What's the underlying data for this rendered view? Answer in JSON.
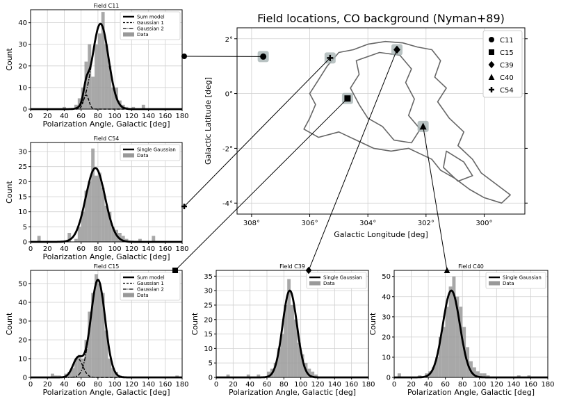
{
  "colors": {
    "bar": "#999999",
    "curve": "#000000",
    "contour": "#666666",
    "grid": "#d0d0d0"
  },
  "chart_data": [
    {
      "id": "map",
      "type": "scatter",
      "title": "Field locations, CO background (Nyman+89)",
      "xlabel": "Galactic Longitude [deg]",
      "ylabel": "Galactic Latitude [deg]",
      "xlim": [
        308.5,
        298.6
      ],
      "ylim": [
        -4.4,
        2.4
      ],
      "xticks": [
        "308°",
        "306°",
        "304°",
        "302°",
        "300°"
      ],
      "yticks": [
        "2°",
        "0°",
        "-2°",
        "-4°"
      ],
      "grid": true,
      "legend": "top-right",
      "fields": [
        {
          "name": "C11",
          "marker": "circle",
          "l": 307.6,
          "b": 1.35
        },
        {
          "name": "C15",
          "marker": "square",
          "l": 304.7,
          "b": -0.18
        },
        {
          "name": "C39",
          "marker": "diamond",
          "l": 303.0,
          "b": 1.6
        },
        {
          "name": "C40",
          "marker": "triangle",
          "l": 302.1,
          "b": -1.2
        },
        {
          "name": "C54",
          "marker": "plus",
          "l": 305.3,
          "b": 1.3
        }
      ]
    },
    {
      "id": "C11",
      "type": "bar",
      "title": "Field C11",
      "xlabel": "Polarization Angle, Galactic [deg]",
      "ylabel": "Count",
      "xlim": [
        0,
        180
      ],
      "ylim": [
        0,
        46
      ],
      "xticks": [
        0,
        20,
        40,
        60,
        80,
        100,
        120,
        140,
        160,
        180
      ],
      "yticks": [
        0,
        10,
        20,
        30,
        40
      ],
      "bin_width": 4,
      "bins": [
        [
          38,
          1
        ],
        [
          52,
          2
        ],
        [
          56,
          5
        ],
        [
          60,
          10
        ],
        [
          64,
          22
        ],
        [
          68,
          30
        ],
        [
          72,
          15
        ],
        [
          76,
          30
        ],
        [
          80,
          35
        ],
        [
          84,
          45
        ],
        [
          88,
          30
        ],
        [
          92,
          20
        ],
        [
          96,
          10
        ],
        [
          100,
          10
        ],
        [
          104,
          4
        ],
        [
          108,
          2
        ],
        [
          112,
          1
        ],
        [
          120,
          1
        ],
        [
          132,
          2
        ]
      ],
      "series": [
        {
          "name": "Sum model",
          "style": "solid",
          "components": [
            [
              6.5,
              66,
              3.2
            ],
            [
              39.5,
              83,
              9.5
            ]
          ]
        },
        {
          "name": "Gaussian 1",
          "style": "dashed",
          "components": [
            [
              6.5,
              66,
              3.2
            ]
          ]
        },
        {
          "name": "Gaussian 2",
          "style": "dashdot",
          "components": [
            [
              39.5,
              83,
              9.5
            ]
          ]
        },
        {
          "name": "Data",
          "style": "bar"
        }
      ]
    },
    {
      "id": "C54",
      "type": "bar",
      "title": "Field C54",
      "xlabel": "Polarization Angle, Galactic [deg]",
      "ylabel": "Count",
      "xlim": [
        0,
        180
      ],
      "ylim": [
        0,
        33
      ],
      "xticks": [
        0,
        20,
        40,
        60,
        80,
        100,
        120,
        140,
        160,
        180
      ],
      "yticks": [
        0,
        5,
        10,
        15,
        20,
        25,
        30
      ],
      "bin_width": 4,
      "bins": [
        [
          8,
          2
        ],
        [
          44,
          3
        ],
        [
          52,
          1
        ],
        [
          56,
          5
        ],
        [
          60,
          10
        ],
        [
          64,
          17
        ],
        [
          68,
          20
        ],
        [
          72,
          31
        ],
        [
          76,
          22
        ],
        [
          80,
          23
        ],
        [
          84,
          18
        ],
        [
          88,
          12
        ],
        [
          92,
          10
        ],
        [
          96,
          5
        ],
        [
          100,
          4
        ],
        [
          104,
          3
        ],
        [
          108,
          2
        ],
        [
          112,
          1
        ],
        [
          128,
          1
        ],
        [
          144,
          2
        ]
      ],
      "series": [
        {
          "name": "Single Gaussian",
          "style": "solid",
          "components": [
            [
              24.5,
              77,
              11.5
            ]
          ]
        },
        {
          "name": "Data",
          "style": "bar"
        }
      ]
    },
    {
      "id": "C15",
      "type": "bar",
      "title": "Field C15",
      "xlabel": "Polarization Angle, Galactic [deg]",
      "ylabel": "Count",
      "xlim": [
        0,
        180
      ],
      "ylim": [
        0,
        57
      ],
      "xticks": [
        0,
        20,
        40,
        60,
        80,
        100,
        120,
        140,
        160,
        180
      ],
      "yticks": [
        0,
        10,
        20,
        30,
        40,
        50
      ],
      "bin_width": 4,
      "bins": [
        [
          24,
          2
        ],
        [
          28,
          1
        ],
        [
          32,
          1
        ],
        [
          40,
          2
        ],
        [
          44,
          3
        ],
        [
          48,
          5
        ],
        [
          52,
          10
        ],
        [
          56,
          12
        ],
        [
          60,
          10
        ],
        [
          64,
          20
        ],
        [
          68,
          35
        ],
        [
          72,
          45
        ],
        [
          76,
          55
        ],
        [
          80,
          50
        ],
        [
          84,
          45
        ],
        [
          88,
          25
        ],
        [
          92,
          10
        ],
        [
          96,
          5
        ],
        [
          100,
          3
        ],
        [
          104,
          1
        ],
        [
          172,
          1
        ]
      ],
      "series": [
        {
          "name": "Sum model",
          "style": "solid",
          "components": [
            [
              10,
              56,
              6
            ],
            [
              52,
              80,
              8.5
            ]
          ]
        },
        {
          "name": "Gaussian 1",
          "style": "dashed",
          "components": [
            [
              10,
              56,
              6
            ]
          ]
        },
        {
          "name": "Gaussian 2",
          "style": "dashdot",
          "components": [
            [
              52,
              80,
              8.5
            ]
          ]
        },
        {
          "name": "Data",
          "style": "bar"
        }
      ]
    },
    {
      "id": "C39",
      "type": "bar",
      "title": "Field C39",
      "xlabel": "Polarization Angle, Galactic [deg]",
      "ylabel": "Count",
      "xlim": [
        0,
        180
      ],
      "ylim": [
        0,
        37
      ],
      "xticks": [
        0,
        20,
        40,
        60,
        80,
        100,
        120,
        140,
        160,
        180
      ],
      "yticks": [
        0,
        5,
        10,
        15,
        20,
        25,
        30,
        35
      ],
      "bin_width": 4,
      "bins": [
        [
          12,
          1
        ],
        [
          36,
          1
        ],
        [
          48,
          1
        ],
        [
          60,
          2
        ],
        [
          64,
          3
        ],
        [
          68,
          5
        ],
        [
          72,
          10
        ],
        [
          76,
          15
        ],
        [
          80,
          25
        ],
        [
          84,
          34
        ],
        [
          88,
          25
        ],
        [
          92,
          20
        ],
        [
          96,
          12
        ],
        [
          100,
          8
        ],
        [
          104,
          5
        ],
        [
          108,
          3
        ],
        [
          112,
          2
        ],
        [
          116,
          1
        ]
      ],
      "series": [
        {
          "name": "Single Gaussian",
          "style": "solid",
          "components": [
            [
              30,
              87,
              8.5
            ]
          ]
        },
        {
          "name": "Data",
          "style": "bar"
        }
      ]
    },
    {
      "id": "C40",
      "type": "bar",
      "title": "Field C40",
      "xlabel": "Polarization Angle, Galactic [deg]",
      "ylabel": "Count",
      "xlim": [
        0,
        180
      ],
      "ylim": [
        0,
        53
      ],
      "xticks": [
        0,
        20,
        40,
        60,
        80,
        100,
        120,
        140,
        160,
        180
      ],
      "yticks": [
        0,
        10,
        20,
        30,
        40,
        50
      ],
      "bin_width": 4,
      "bins": [
        [
          4,
          2
        ],
        [
          28,
          1
        ],
        [
          36,
          2
        ],
        [
          40,
          3
        ],
        [
          44,
          5
        ],
        [
          48,
          10
        ],
        [
          52,
          20
        ],
        [
          56,
          25
        ],
        [
          60,
          35
        ],
        [
          64,
          45
        ],
        [
          68,
          50
        ],
        [
          72,
          40
        ],
        [
          76,
          35
        ],
        [
          80,
          25
        ],
        [
          84,
          15
        ],
        [
          88,
          8
        ],
        [
          92,
          5
        ],
        [
          96,
          3
        ],
        [
          100,
          2
        ],
        [
          104,
          2
        ],
        [
          108,
          1
        ],
        [
          144,
          1
        ],
        [
          156,
          1
        ]
      ],
      "series": [
        {
          "name": "Single Gaussian",
          "style": "solid",
          "components": [
            [
              43,
              67,
              10
            ]
          ]
        },
        {
          "name": "Data",
          "style": "bar"
        }
      ]
    }
  ]
}
